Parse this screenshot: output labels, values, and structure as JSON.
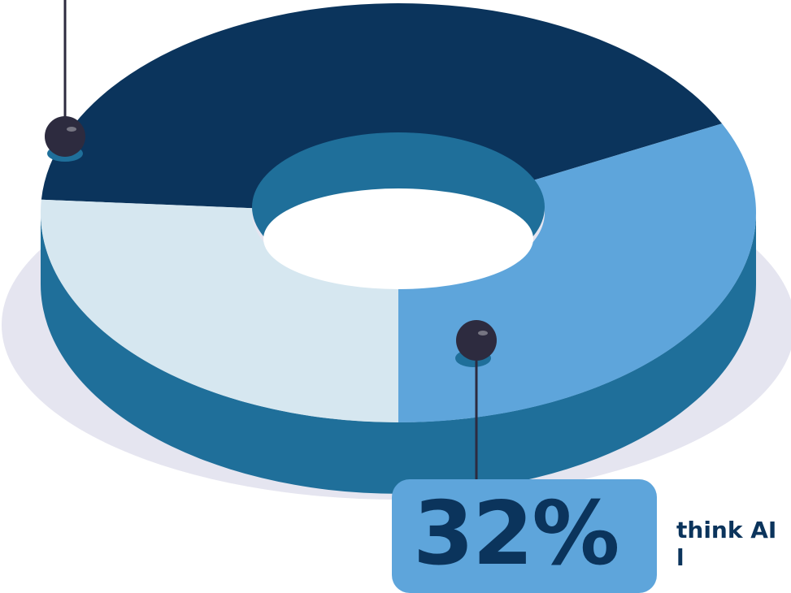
{
  "colors": {
    "background": "#ffffff",
    "shadow": "#e5e5f0",
    "side": "#1f6f9a",
    "hole_inner": "#1f6f9a",
    "pin": "#2d2b3f",
    "pin_shadow": "#1f6f9a",
    "callout_bg": "#5ea5db",
    "text": "#0b345c"
  },
  "chart_data": {
    "type": "pie",
    "variant": "3d-donut",
    "slices": [
      {
        "share": 42,
        "color": "#0b345c"
      },
      {
        "share": 32,
        "color": "#5ea5db"
      },
      {
        "share": 26,
        "color": "#d6e7f0"
      }
    ],
    "highlighted_slice_index": 1
  },
  "callout": {
    "value": "32%",
    "text": "think AI",
    "text_continuation": "l"
  }
}
